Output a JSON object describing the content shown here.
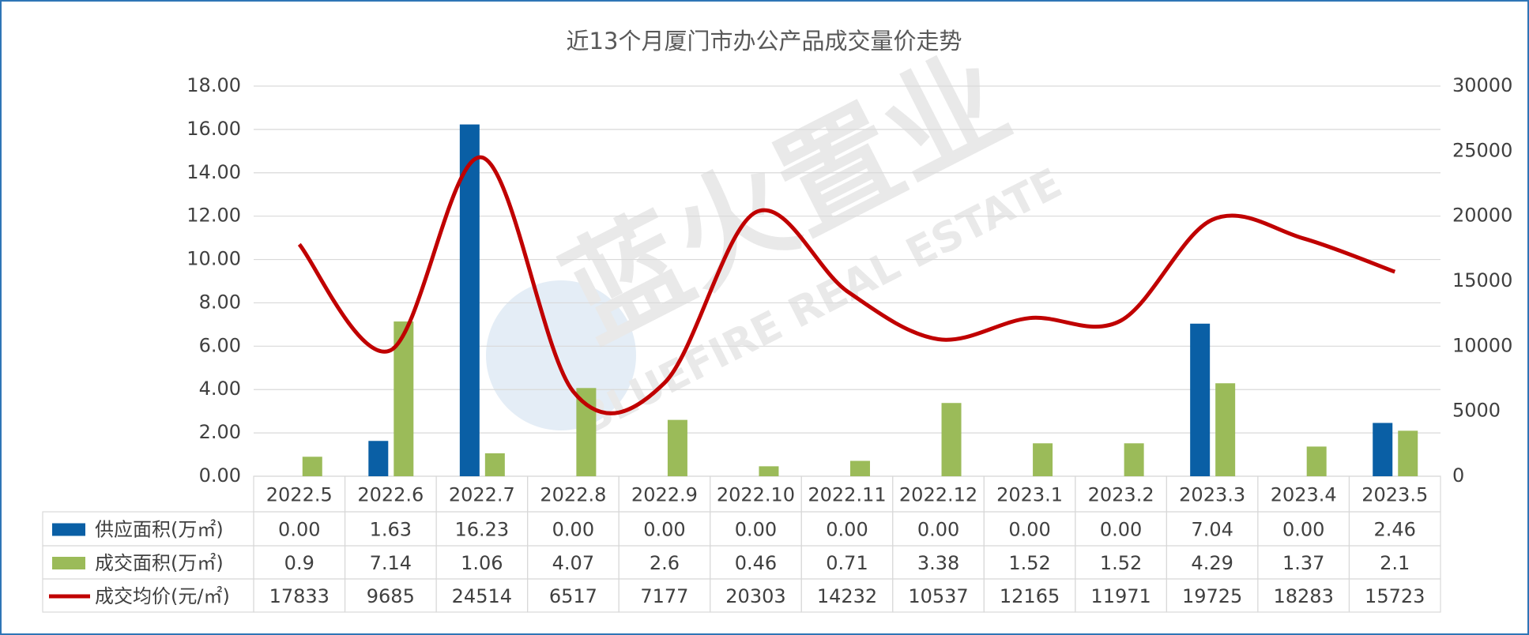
{
  "chart_data": {
    "type": "bar-line-table",
    "title": "近13个月厦门市办公产品成交量价走势",
    "watermark": "蓝火置业",
    "watermark_en": "BLUEFIRE REAL ESTATE",
    "categories": [
      "2022.5",
      "2022.6",
      "2022.7",
      "2022.8",
      "2022.9",
      "2022.10",
      "2022.11",
      "2022.12",
      "2023.1",
      "2023.2",
      "2023.3",
      "2023.4",
      "2023.5"
    ],
    "series": [
      {
        "name": "供应面积(万㎡)",
        "type": "bar",
        "color": "#0a5fa5",
        "axis": "y",
        "values": [
          0,
          1.63,
          16.23,
          0,
          0,
          0,
          0,
          0,
          0,
          0,
          7.04,
          0,
          2.46
        ],
        "value_labels": [
          "0.00",
          "1.63",
          "16.23",
          "0.00",
          "0.00",
          "0.00",
          "0.00",
          "0.00",
          "0.00",
          "0.00",
          "7.04",
          "0.00",
          "2.46"
        ]
      },
      {
        "name": "成交面积(万㎡)",
        "type": "bar",
        "color": "#9bbb59",
        "axis": "y",
        "values": [
          0.9,
          7.14,
          1.06,
          4.07,
          2.6,
          0.46,
          0.71,
          3.38,
          1.52,
          1.52,
          4.29,
          1.37,
          2.1
        ]
      },
      {
        "name": "成交均价(元/㎡)",
        "type": "line",
        "color": "#c00000",
        "axis": "y2",
        "values": [
          17833,
          9685,
          24514,
          6517,
          7177,
          20303,
          14232,
          10537,
          12165,
          11971,
          19725,
          18283,
          15723
        ]
      }
    ],
    "ylim": [
      0,
      18
    ],
    "yticks": [
      {
        "value": 0,
        "label": "0.00"
      },
      {
        "value": 2,
        "label": "2.00"
      },
      {
        "value": 4,
        "label": "4.00"
      },
      {
        "value": 6,
        "label": "6.00"
      },
      {
        "value": 8,
        "label": "8.00"
      },
      {
        "value": 10,
        "label": "10.00"
      },
      {
        "value": 12,
        "label": "12.00"
      },
      {
        "value": 14,
        "label": "14.00"
      },
      {
        "value": 16,
        "label": "16.00"
      },
      {
        "value": 18,
        "label": "18.00"
      }
    ],
    "y2lim": [
      0,
      30000
    ],
    "y2ticks": [
      0,
      5000,
      10000,
      15000,
      20000,
      25000,
      30000
    ],
    "grid": true
  }
}
